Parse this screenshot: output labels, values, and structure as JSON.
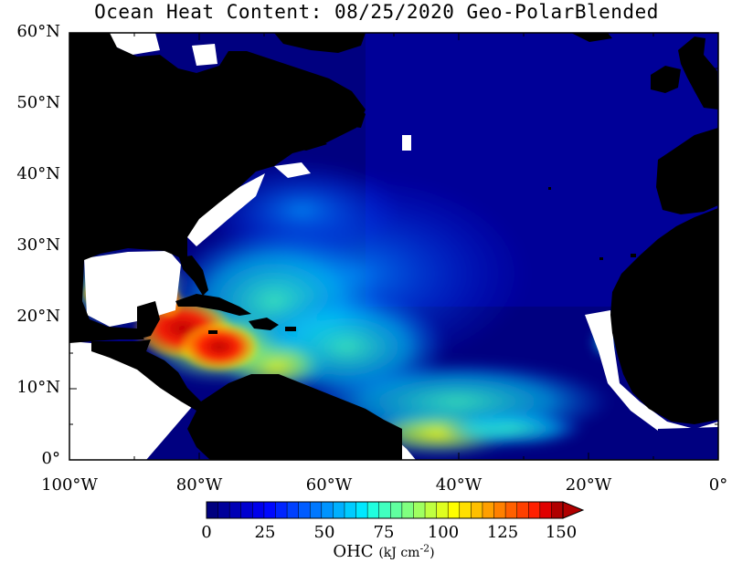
{
  "title": "Ocean Heat Content: 08/25/2020 Geo-PolarBlended",
  "latitude_labels": [
    "60°N",
    "50°N",
    "40°N",
    "30°N",
    "20°N",
    "10°N",
    "0°"
  ],
  "longitude_labels": [
    "100°W",
    "80°W",
    "60°W",
    "40°W",
    "20°W",
    "0°"
  ],
  "colorbar": {
    "variable": "OHC",
    "unit_base": "kJ cm",
    "unit_exponent": "-2",
    "ticks": [
      "0",
      "25",
      "50",
      "75",
      "100",
      "125",
      "150"
    ],
    "min": 0,
    "max": 150,
    "colors": [
      "#00007f",
      "#00009a",
      "#0000b5",
      "#0000d0",
      "#0000eb",
      "#0008ff",
      "#0024ff",
      "#0040ff",
      "#005cff",
      "#0078ff",
      "#0094ff",
      "#00b0ff",
      "#00ccff",
      "#00e8ff",
      "#20ffdf",
      "#40ffbf",
      "#60ff9f",
      "#80ff80",
      "#9fff60",
      "#bfff40",
      "#dfff20",
      "#ffff00",
      "#ffdf00",
      "#ffbf00",
      "#ff9f00",
      "#ff8000",
      "#ff6000",
      "#ff4000",
      "#ff2000",
      "#e00000",
      "#b00000"
    ]
  },
  "colors": {
    "land": "#000000",
    "no_data": "#ffffff",
    "ocean_background": "#000080"
  }
}
